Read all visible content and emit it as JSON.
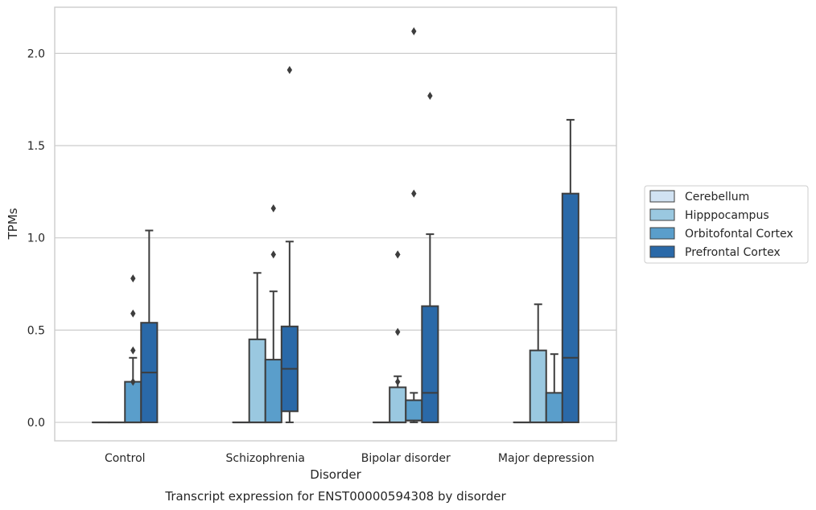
{
  "chart_data": {
    "type": "box",
    "title": "",
    "caption": "Transcript expression for ENST00000594308 by disorder",
    "xlabel": "Disorder",
    "ylabel": "TPMs",
    "ylim": [
      -0.1,
      2.25
    ],
    "yticks": [
      0.0,
      0.5,
      1.0,
      1.5,
      2.0
    ],
    "ytick_labels": [
      "0.0",
      "0.5",
      "1.0",
      "1.5",
      "2.0"
    ],
    "grid": "horizontal",
    "legend_placement": "right",
    "categories": [
      "Control",
      "Schizophrenia",
      "Bipolar disorder",
      "Major depression"
    ],
    "series": [
      {
        "name": "Cerebellum",
        "color": "#d1e2f2",
        "boxes": [
          {
            "q1": 0,
            "median": 0,
            "q3": 0,
            "whisker_low": 0,
            "whisker_high": 0,
            "outliers": []
          },
          {
            "q1": 0,
            "median": 0,
            "q3": 0,
            "whisker_low": 0,
            "whisker_high": 0,
            "outliers": []
          },
          {
            "q1": 0,
            "median": 0,
            "q3": 0,
            "whisker_low": 0,
            "whisker_high": 0,
            "outliers": []
          },
          {
            "q1": 0,
            "median": 0,
            "q3": 0,
            "whisker_low": 0,
            "whisker_high": 0,
            "outliers": []
          }
        ]
      },
      {
        "name": "Hipppocampus",
        "color": "#9ac8e0",
        "boxes": [
          {
            "q1": 0,
            "median": 0,
            "q3": 0,
            "whisker_low": 0,
            "whisker_high": 0,
            "outliers": []
          },
          {
            "q1": 0,
            "median": 0,
            "q3": 0.45,
            "whisker_low": 0,
            "whisker_high": 0.81,
            "outliers": []
          },
          {
            "q1": 0,
            "median": 0,
            "q3": 0.19,
            "whisker_low": 0,
            "whisker_high": 0.25,
            "outliers": [
              0.22,
              0.49,
              0.91,
              0.91
            ]
          },
          {
            "q1": 0,
            "median": 0,
            "q3": 0.39,
            "whisker_low": 0,
            "whisker_high": 0.64,
            "outliers": []
          }
        ]
      },
      {
        "name": "Orbitofontal Cortex",
        "color": "#5a9ecb",
        "boxes": [
          {
            "q1": 0,
            "median": 0,
            "q3": 0.22,
            "whisker_low": 0,
            "whisker_high": 0.35,
            "outliers": [
              0.22,
              0.39,
              0.59,
              0.78
            ]
          },
          {
            "q1": 0,
            "median": 0,
            "q3": 0.34,
            "whisker_low": 0,
            "whisker_high": 0.71,
            "outliers": [
              0.91,
              1.16
            ]
          },
          {
            "q1": 0.01,
            "median": 0.01,
            "q3": 0.12,
            "whisker_low": 0,
            "whisker_high": 0.16,
            "outliers": [
              1.24,
              2.12
            ]
          },
          {
            "q1": 0,
            "median": 0,
            "q3": 0.16,
            "whisker_low": 0,
            "whisker_high": 0.37,
            "outliers": []
          }
        ]
      },
      {
        "name": "Prefrontal Cortex",
        "color": "#2a69a8",
        "boxes": [
          {
            "q1": 0,
            "median": 0.27,
            "q3": 0.54,
            "whisker_low": 0,
            "whisker_high": 1.04,
            "outliers": []
          },
          {
            "q1": 0.06,
            "median": 0.29,
            "q3": 0.52,
            "whisker_low": 0,
            "whisker_high": 0.98,
            "outliers": [
              1.91
            ]
          },
          {
            "q1": 0,
            "median": 0.16,
            "q3": 0.63,
            "whisker_low": 0,
            "whisker_high": 1.02,
            "outliers": [
              1.77
            ]
          },
          {
            "q1": 0,
            "median": 0.35,
            "q3": 1.24,
            "whisker_low": 0,
            "whisker_high": 1.64,
            "outliers": []
          }
        ]
      }
    ]
  }
}
